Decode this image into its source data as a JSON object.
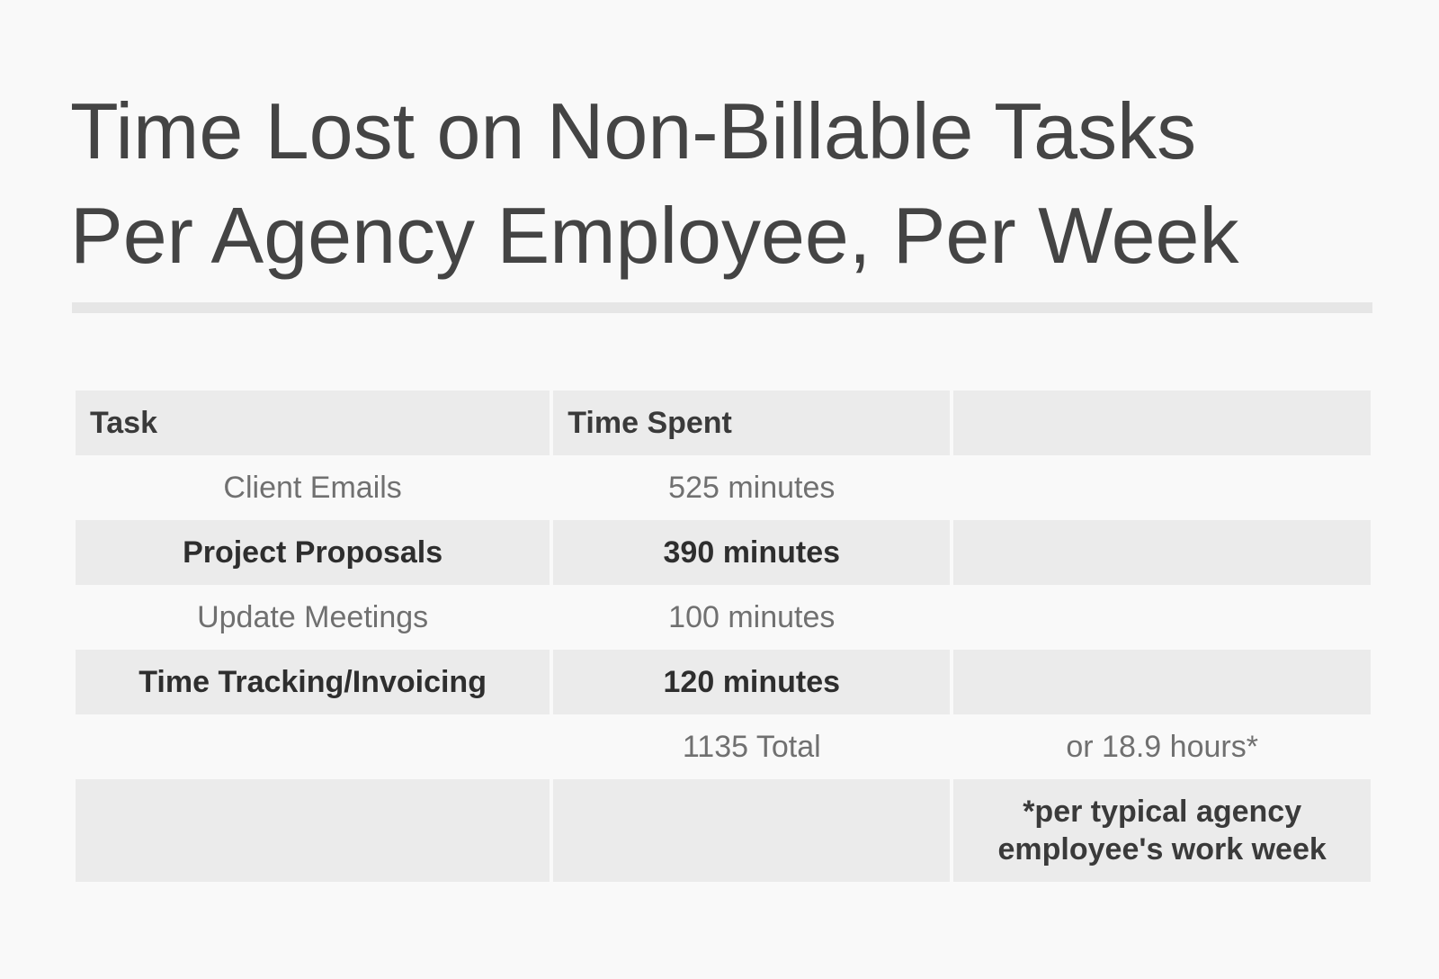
{
  "chart_data": {
    "type": "table",
    "title_lines": [
      "Time Lost on Non-Billable Tasks",
      "Per Agency Employee, Per Week"
    ],
    "columns": [
      "Task",
      "Time Spent",
      ""
    ],
    "rows": [
      {
        "task": "Client Emails",
        "time": "525 minutes",
        "note": "",
        "minutes": 525
      },
      {
        "task": "Project Proposals",
        "time": "390 minutes",
        "note": "",
        "minutes": 390
      },
      {
        "task": "Update Meetings",
        "time": "100 minutes",
        "note": "",
        "minutes": 100
      },
      {
        "task": "Time Tracking/Invoicing",
        "time": "120 minutes",
        "note": "",
        "minutes": 120
      }
    ],
    "total": {
      "task": "",
      "time": "1135 Total",
      "note": "or 18.9 hours*"
    },
    "footnote_lines": [
      "*per typical agency",
      "employee's work week"
    ],
    "colors": {
      "title": "#444444",
      "shaded_row": "#ebebeb",
      "divider": "#e6e6e6",
      "light_text": "#707070",
      "bold_text": "#2e2e2e"
    }
  }
}
